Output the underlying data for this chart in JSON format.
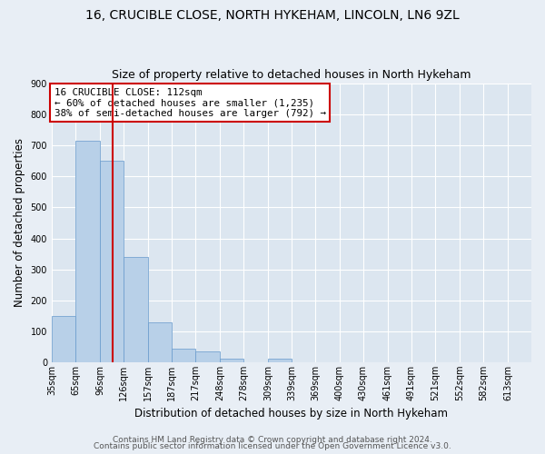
{
  "title": "16, CRUCIBLE CLOSE, NORTH HYKEHAM, LINCOLN, LN6 9ZL",
  "subtitle": "Size of property relative to detached houses in North Hykeham",
  "xlabel": "Distribution of detached houses by size in North Hykeham",
  "ylabel": "Number of detached properties",
  "bin_edges": [
    35,
    65,
    96,
    126,
    157,
    187,
    217,
    248,
    278,
    309,
    339,
    369,
    400,
    430,
    461,
    491,
    521,
    552,
    582,
    613,
    643
  ],
  "bar_heights": [
    150,
    715,
    650,
    340,
    130,
    45,
    35,
    10,
    0,
    10,
    0,
    0,
    0,
    0,
    0,
    0,
    0,
    0,
    0,
    0
  ],
  "bar_color": "#b8d0e8",
  "bar_edge_color": "#6699cc",
  "vline_x": 112,
  "vline_color": "#cc0000",
  "ylim": [
    0,
    900
  ],
  "yticks": [
    0,
    100,
    200,
    300,
    400,
    500,
    600,
    700,
    800,
    900
  ],
  "annotation_title": "16 CRUCIBLE CLOSE: 112sqm",
  "annotation_line1": "← 60% of detached houses are smaller (1,235)",
  "annotation_line2": "38% of semi-detached houses are larger (792) →",
  "annotation_box_color": "#cc0000",
  "footer_line1": "Contains HM Land Registry data © Crown copyright and database right 2024.",
  "footer_line2": "Contains public sector information licensed under the Open Government Licence v3.0.",
  "background_color": "#e8eef5",
  "plot_background": "#dce6f0",
  "grid_color": "#ffffff",
  "title_fontsize": 10,
  "subtitle_fontsize": 9,
  "axis_label_fontsize": 8.5,
  "tick_label_fontsize": 7,
  "annotation_fontsize": 7.8,
  "footer_fontsize": 6.5
}
